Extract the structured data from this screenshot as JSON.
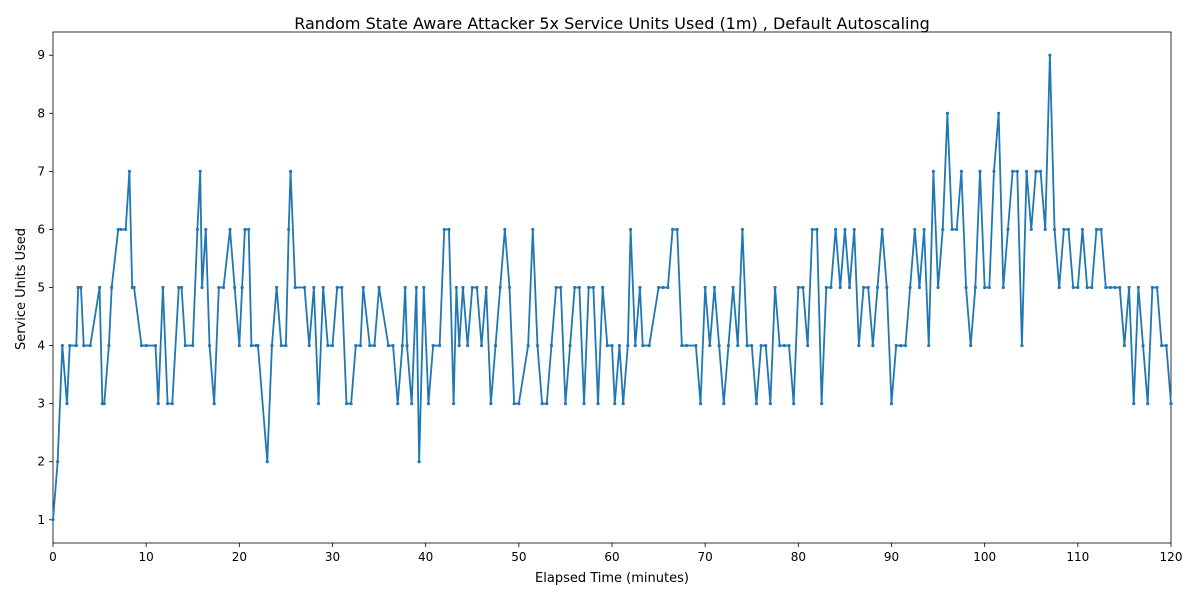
{
  "chart_data": {
    "type": "line",
    "title": "Random State Aware Attacker 5x Service Units Used (1m) , Default Autoscaling",
    "xlabel": "Elapsed Time (minutes)",
    "ylabel": "Service Units Used",
    "xlim": [
      0,
      120
    ],
    "ylim": [
      0.6,
      9.4
    ],
    "xticks": [
      0,
      10,
      20,
      30,
      40,
      50,
      60,
      70,
      80,
      90,
      100,
      110,
      120
    ],
    "yticks": [
      1,
      2,
      3,
      4,
      5,
      6,
      7,
      8,
      9
    ],
    "grid": false,
    "legend": "none",
    "color": "#1f77b4",
    "series": [
      {
        "x": [
          0.0,
          0.5,
          1.0,
          1.5,
          1.8,
          2.5,
          2.7,
          3.0,
          3.3,
          4.0,
          5.0,
          5.3,
          5.5,
          6.0,
          6.3,
          7.0,
          7.3,
          7.8,
          8.2,
          8.5,
          8.7,
          9.5,
          10.0,
          11.0,
          11.3,
          11.8,
          12.3,
          12.8,
          13.5,
          13.8,
          14.2,
          15.0,
          15.5,
          15.8,
          16.0,
          16.4,
          16.8,
          17.3,
          17.8,
          18.3,
          19.0,
          19.5,
          20.0,
          20.3,
          20.6,
          21.0,
          21.3,
          21.8,
          22.0,
          23.0,
          23.5,
          24.0,
          24.5,
          25.0,
          25.3,
          25.5,
          26.0,
          27.0,
          27.5,
          28.0,
          28.5,
          29.0,
          29.5,
          30.0,
          30.5,
          31.0,
          31.5,
          32.0,
          32.5,
          33.0,
          33.3,
          34.0,
          34.5,
          35.0,
          36.0,
          36.5,
          37.0,
          37.5,
          37.8,
          38.0,
          38.5,
          39.0,
          39.3,
          39.8,
          40.3,
          40.8,
          41.5,
          42.0,
          42.5,
          43.0,
          43.3,
          43.6,
          44.0,
          44.5,
          45.0,
          45.5,
          46.0,
          46.5,
          47.0,
          47.5,
          48.0,
          48.5,
          49.0,
          49.5,
          50.0,
          51.0,
          51.5,
          52.0,
          52.5,
          53.0,
          53.5,
          54.0,
          54.5,
          55.0,
          55.5,
          56.0,
          56.5,
          57.0,
          57.5,
          58.0,
          58.5,
          59.0,
          59.5,
          60.0,
          60.3,
          60.8,
          61.2,
          61.7,
          62.0,
          62.5,
          63.0,
          63.3,
          64.0,
          65.0,
          65.5,
          66.0,
          66.5,
          67.0,
          67.5,
          68.0,
          69.0,
          69.5,
          70.0,
          70.5,
          71.0,
          71.5,
          72.0,
          72.5,
          73.0,
          73.5,
          74.0,
          74.5,
          75.0,
          75.5,
          76.0,
          76.5,
          77.0,
          77.5,
          78.0,
          78.5,
          79.0,
          79.5,
          80.0,
          80.5,
          81.0,
          81.5,
          82.0,
          82.5,
          83.0,
          83.5,
          84.0,
          84.5,
          85.0,
          85.5,
          86.0,
          86.5,
          87.0,
          87.5,
          88.0,
          88.5,
          89.0,
          89.5,
          90.0,
          90.5,
          91.0,
          91.5,
          92.0,
          92.5,
          93.0,
          93.5,
          94.0,
          94.5,
          95.0,
          95.5,
          96.0,
          96.5,
          97.0,
          97.5,
          98.0,
          98.5,
          99.0,
          99.5,
          100.0,
          100.5,
          101.0,
          101.5,
          102.0,
          102.5,
          103.0,
          103.5,
          104.0,
          104.5,
          105.0,
          105.5,
          106.0,
          106.5,
          107.0,
          107.5,
          108.0,
          108.5,
          109.0,
          109.5,
          110.0,
          110.5,
          111.0,
          111.5,
          112.0,
          112.5,
          113.0,
          113.5,
          114.0,
          114.5,
          115.0,
          115.5,
          116.0,
          116.5,
          117.0,
          117.5,
          118.0,
          118.5,
          119.0,
          119.5,
          120.0
        ],
        "y": [
          1,
          2,
          4,
          3,
          4,
          4,
          5,
          5,
          4,
          4,
          5,
          3,
          3,
          4,
          5,
          6,
          6,
          6,
          7,
          5,
          5,
          4,
          4,
          4,
          3,
          5,
          3,
          3,
          5,
          5,
          4,
          4,
          6,
          7,
          5,
          6,
          4,
          3,
          5,
          5,
          6,
          5,
          4,
          5,
          6,
          6,
          4,
          4,
          4,
          2,
          4,
          5,
          4,
          4,
          6,
          7,
          5,
          5,
          4,
          5,
          3,
          5,
          4,
          4,
          5,
          5,
          3,
          3,
          4,
          4,
          5,
          4,
          4,
          5,
          4,
          4,
          3,
          4,
          5,
          4,
          3,
          5,
          2,
          5,
          3,
          4,
          4,
          6,
          6,
          3,
          5,
          4,
          5,
          4,
          5,
          5,
          4,
          5,
          3,
          4,
          5,
          6,
          5,
          3,
          3,
          4,
          6,
          4,
          3,
          3,
          4,
          5,
          5,
          3,
          4,
          5,
          5,
          3,
          5,
          5,
          3,
          5,
          4,
          4,
          3,
          4,
          3,
          4,
          6,
          4,
          5,
          4,
          4,
          5,
          5,
          5,
          6,
          6,
          4,
          4,
          4,
          3,
          5,
          4,
          5,
          4,
          3,
          4,
          5,
          4,
          6,
          4,
          4,
          3,
          4,
          4,
          3,
          5,
          4,
          4,
          4,
          3,
          5,
          5,
          4,
          6,
          6,
          3,
          5,
          5,
          6,
          5,
          6,
          5,
          6,
          4,
          5,
          5,
          4,
          5,
          6,
          5,
          3,
          4,
          4,
          4,
          5,
          6,
          5,
          6,
          4,
          7,
          5,
          6,
          8,
          6,
          6,
          7,
          5,
          4,
          5,
          7,
          5,
          5,
          7,
          8,
          5,
          6,
          7,
          7,
          4,
          7,
          6,
          7,
          7,
          6,
          9,
          6,
          5,
          6,
          6,
          5,
          5,
          6,
          5,
          5,
          6,
          6,
          5,
          5,
          5,
          5,
          4,
          5,
          3,
          5,
          4,
          3,
          5,
          5,
          4,
          4,
          3
        ]
      }
    ]
  }
}
